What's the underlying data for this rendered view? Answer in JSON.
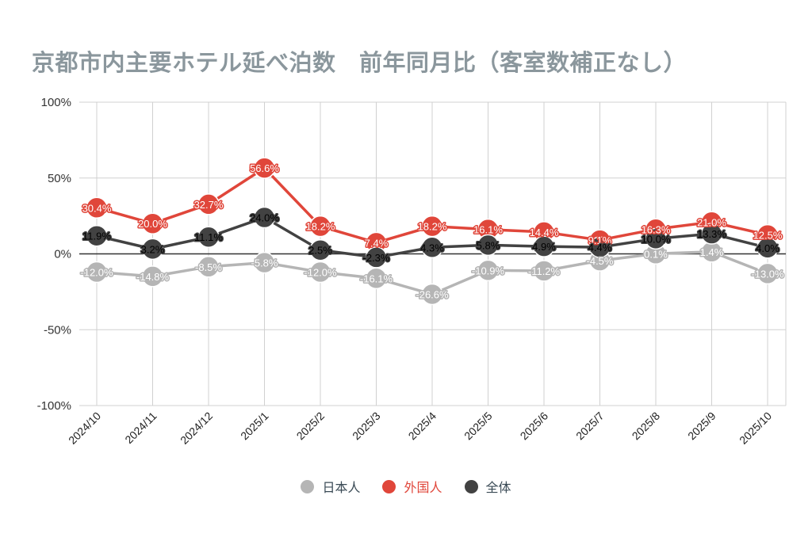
{
  "chart_data": {
    "type": "line",
    "title": "京都市内主要ホテル延べ泊数　前年同月比（客室数補正なし）",
    "categories": [
      "2024/10",
      "2024/11",
      "2024/12",
      "2025/1",
      "2025/2",
      "2025/3",
      "2025/4",
      "2025/5",
      "2025/6",
      "2025/7",
      "2025/8",
      "2025/9",
      "2025/10"
    ],
    "ylim": [
      -100,
      100
    ],
    "yticks": [
      100,
      50,
      0,
      -50,
      -100
    ],
    "ytick_labels": [
      "100%",
      "50%",
      "0%",
      "-50%",
      "-100%"
    ],
    "grid": true,
    "legend_position": "bottom",
    "series": [
      {
        "name": "日本人",
        "color": "#b5b5b5",
        "values": [
          -12.0,
          -14.8,
          -8.5,
          -5.8,
          -12.0,
          -16.1,
          -26.6,
          -10.9,
          -11.2,
          -4.5,
          0.1,
          1.4,
          -13.0
        ],
        "labels": [
          "-12.0%",
          "-14.8%",
          "-8.5%",
          "-5.8%",
          "-12.0%",
          "-16.1%",
          "-26.6%",
          "-10.9%",
          "-11.2%",
          "-4.5%",
          "0.1%",
          "1.4%",
          "-13.0%"
        ]
      },
      {
        "name": "外国人",
        "color": "#e0463a",
        "values": [
          30.4,
          20.0,
          32.7,
          56.6,
          18.2,
          7.4,
          18.2,
          16.1,
          14.4,
          9.1,
          16.3,
          21.0,
          12.5
        ],
        "labels": [
          "30.4%",
          "20.0%",
          "32.7%",
          "56.6%",
          "18.2%",
          "7.4%",
          "18.2%",
          "16.1%",
          "14.4%",
          "9.1%",
          "16.3%",
          "21.0%",
          "12.5%"
        ]
      },
      {
        "name": "全体",
        "color": "#424242",
        "values": [
          11.9,
          3.2,
          11.1,
          24.0,
          2.5,
          -2.3,
          4.3,
          5.8,
          4.9,
          4.4,
          10.0,
          13.3,
          4.0
        ],
        "labels": [
          "11.9%",
          "3.2%",
          "11.1%",
          "24.0%",
          "2.5%",
          "-2.3%",
          "4.3%",
          "5.8%",
          "4.9%",
          "4.4%",
          "10.0%",
          "13.3%",
          "4.0%"
        ]
      }
    ]
  }
}
